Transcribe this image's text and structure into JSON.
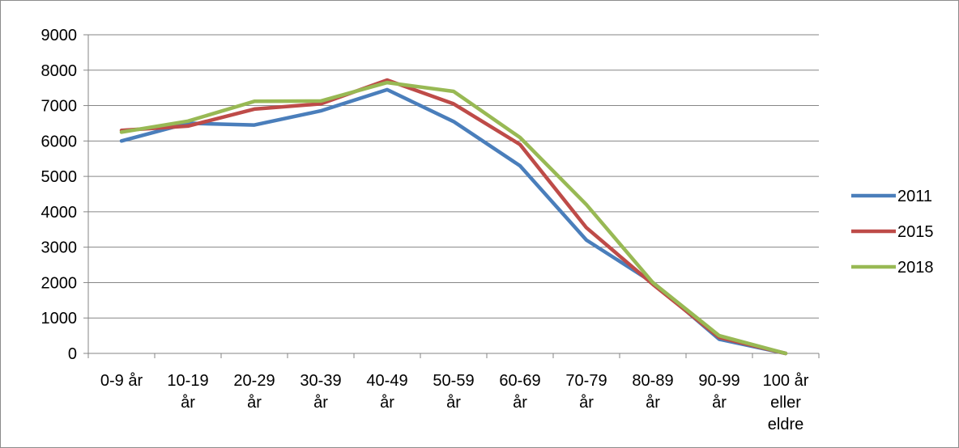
{
  "chart_data": {
    "type": "line",
    "title": "",
    "xlabel": "",
    "ylabel": "",
    "ylim": [
      0,
      9000
    ],
    "yticks": [
      0,
      1000,
      2000,
      3000,
      4000,
      5000,
      6000,
      7000,
      8000,
      9000
    ],
    "grid": "horizontal",
    "legend_position": "right",
    "categories": [
      [
        "0-9 år"
      ],
      [
        "10-19",
        "år"
      ],
      [
        "20-29",
        "år"
      ],
      [
        "30-39",
        "år"
      ],
      [
        "40-49",
        "år"
      ],
      [
        "50-59",
        "år"
      ],
      [
        "60-69",
        "år"
      ],
      [
        "70-79",
        "år"
      ],
      [
        "80-89",
        "år"
      ],
      [
        "90-99",
        "år"
      ],
      [
        "100 år",
        "eller",
        "eldre"
      ]
    ],
    "series": [
      {
        "name": "2011",
        "color": "#4a7ebb",
        "values": [
          6000,
          6500,
          6450,
          6850,
          7450,
          6550,
          5300,
          3200,
          2000,
          400,
          0
        ]
      },
      {
        "name": "2015",
        "color": "#be4b48",
        "values": [
          6300,
          6420,
          6900,
          7050,
          7720,
          7050,
          5900,
          3550,
          1950,
          450,
          0
        ]
      },
      {
        "name": "2018",
        "color": "#98b954",
        "values": [
          6250,
          6560,
          7120,
          7130,
          7650,
          7400,
          6100,
          4200,
          2000,
          500,
          0
        ]
      }
    ]
  }
}
